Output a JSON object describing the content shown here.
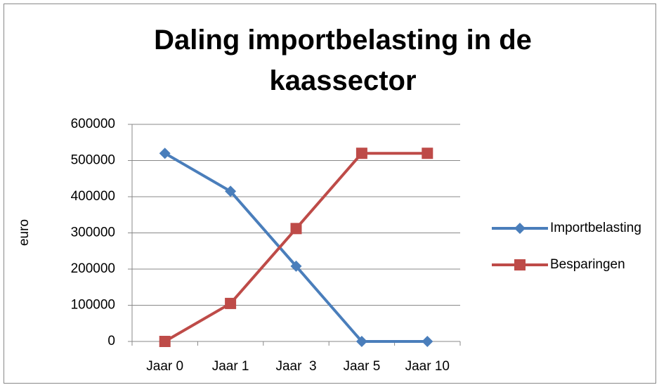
{
  "chart_data": {
    "type": "line",
    "title": "Daling importbelasting in de kaassector",
    "y_label": "euro",
    "categories": [
      "Jaar 0",
      "Jaar 1",
      "Jaar  3",
      "Jaar 5",
      "Jaar 10"
    ],
    "series": [
      {
        "name": "Importbelasting",
        "color": "#4a7ebb",
        "marker": "diamond",
        "values": [
          520000,
          415000,
          208000,
          0,
          0
        ]
      },
      {
        "name": "Besparingen",
        "color": "#be4b48",
        "marker": "square",
        "values": [
          0,
          105000,
          312000,
          520000,
          520000
        ]
      }
    ],
    "ylim": [
      0,
      600000
    ],
    "yticks": [
      0,
      100000,
      200000,
      300000,
      400000,
      500000,
      600000
    ],
    "grid": true,
    "legend": "right"
  }
}
